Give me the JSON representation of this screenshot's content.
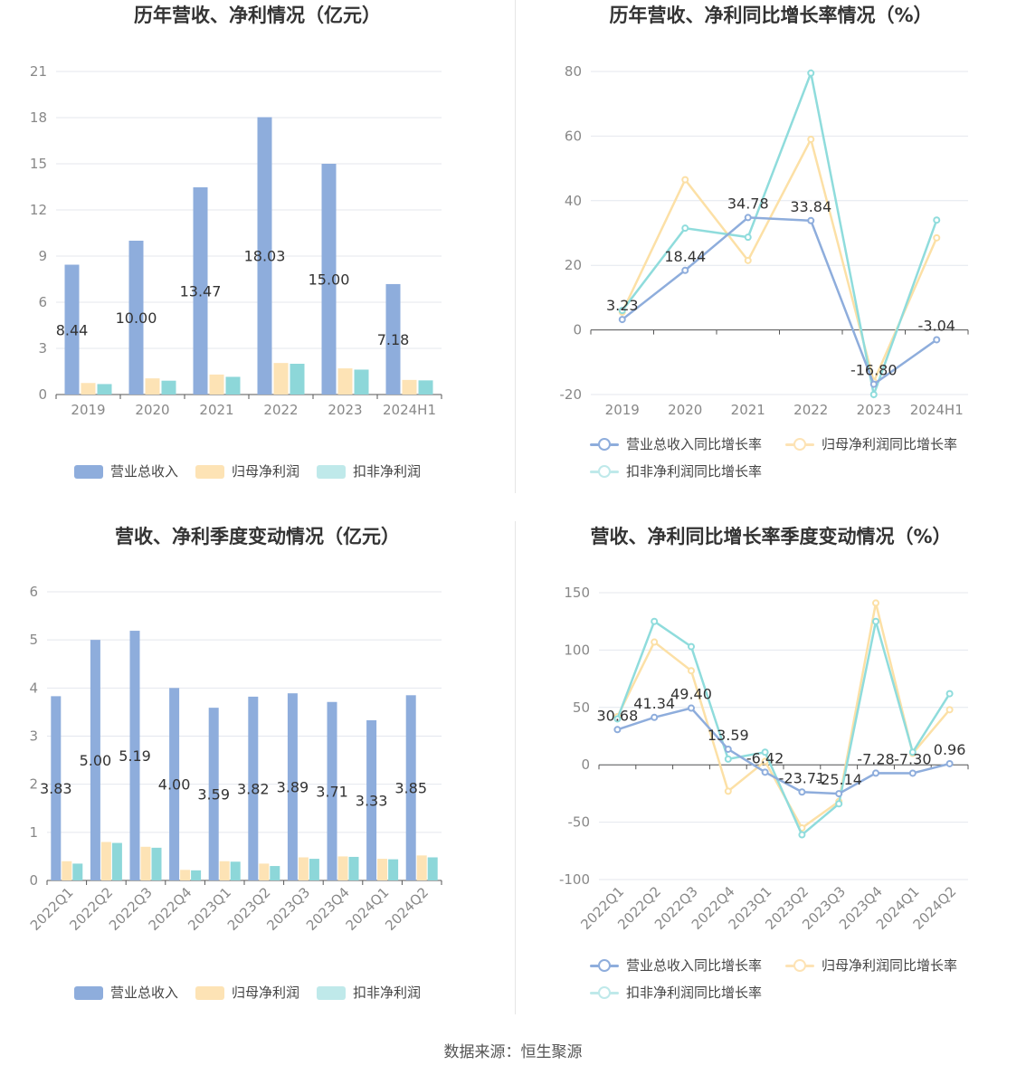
{
  "source_text": "数据来源：恒生聚源",
  "panels": {
    "annual_bar": {
      "title": "历年营收、净利情况（亿元）"
    },
    "annual_line": {
      "title": "历年营收、净利同比增长率情况（%）"
    },
    "quarter_bar": {
      "title": "营收、净利季度变动情况（亿元）"
    },
    "quarter_line": {
      "title": "营收、净利同比增长率季度变动情况（%）"
    }
  },
  "legends": {
    "bar": [
      "营业总收入",
      "归母净利润",
      "扣非净利润"
    ],
    "line": [
      "营业总收入同比增长率",
      "归母净利润同比增长率",
      "扣非净利润同比增长率"
    ]
  },
  "colors": {
    "revenue": "#8eaddc",
    "net_profit": "#fde3b5",
    "deducted_profit": "#8dd7d9",
    "line_revenue": "#8eaddc",
    "line_net_profit": "#fce0a6",
    "line_deducted": "#8fdcdc"
  },
  "chart_data": [
    {
      "id": "annual_bar",
      "type": "bar",
      "title": "历年营收、净利情况（亿元）",
      "categories": [
        "2019",
        "2020",
        "2021",
        "2022",
        "2023",
        "2024H1"
      ],
      "ylim": [
        0,
        21
      ],
      "yticks": [
        0,
        3,
        6,
        9,
        12,
        15,
        18,
        21
      ],
      "grid": true,
      "legend_position": "bottom",
      "series": [
        {
          "name": "营业总收入",
          "values": [
            8.44,
            10.0,
            13.47,
            18.03,
            15.0,
            7.18
          ],
          "labels": [
            "8.44",
            "10.00",
            "13.47",
            "18.03",
            "15.00",
            "7.18"
          ]
        },
        {
          "name": "归母净利润",
          "values": [
            0.75,
            1.05,
            1.3,
            2.05,
            1.7,
            0.95
          ]
        },
        {
          "name": "扣非净利润",
          "values": [
            0.68,
            0.9,
            1.15,
            2.0,
            1.62,
            0.92
          ]
        }
      ]
    },
    {
      "id": "annual_line",
      "type": "line",
      "title": "历年营收、净利同比增长率情况（%）",
      "categories": [
        "2019",
        "2020",
        "2021",
        "2022",
        "2023",
        "2024H1"
      ],
      "ylim": [
        -20,
        80
      ],
      "yticks": [
        -20,
        0,
        20,
        40,
        60,
        80
      ],
      "grid": true,
      "legend_position": "bottom",
      "series": [
        {
          "name": "营业总收入同比增长率",
          "values": [
            3.23,
            18.44,
            34.78,
            33.84,
            -16.8,
            -3.04
          ],
          "labels": [
            "3.23",
            "18.44",
            "34.78",
            "33.84",
            "-16.80",
            "-3.04"
          ]
        },
        {
          "name": "归母净利润同比增长率",
          "values": [
            5.5,
            46.5,
            21.5,
            59.0,
            -16.0,
            28.5
          ]
        },
        {
          "name": "扣非净利润同比增长率",
          "values": [
            6.0,
            31.5,
            28.7,
            79.5,
            -20.0,
            34.0
          ]
        }
      ]
    },
    {
      "id": "quarter_bar",
      "type": "bar",
      "title": "营收、净利季度变动情况（亿元）",
      "categories": [
        "2022Q1",
        "2022Q2",
        "2022Q3",
        "2022Q4",
        "2023Q1",
        "2023Q2",
        "2023Q3",
        "2023Q4",
        "2024Q1",
        "2024Q2"
      ],
      "ylim": [
        0,
        6
      ],
      "yticks": [
        0,
        1,
        2,
        3,
        4,
        5,
        6
      ],
      "grid": true,
      "legend_position": "bottom",
      "series": [
        {
          "name": "营业总收入",
          "values": [
            3.83,
            5.0,
            5.19,
            4.0,
            3.59,
            3.82,
            3.89,
            3.71,
            3.33,
            3.85
          ],
          "labels": [
            "3.83",
            "5.00",
            "5.19",
            "4.00",
            "3.59",
            "3.82",
            "3.89",
            "3.71",
            "3.33",
            "3.85"
          ]
        },
        {
          "name": "归母净利润",
          "values": [
            0.4,
            0.8,
            0.7,
            0.22,
            0.4,
            0.35,
            0.48,
            0.5,
            0.45,
            0.52
          ]
        },
        {
          "name": "扣非净利润",
          "values": [
            0.35,
            0.78,
            0.68,
            0.21,
            0.39,
            0.3,
            0.45,
            0.49,
            0.44,
            0.48
          ]
        }
      ]
    },
    {
      "id": "quarter_line",
      "type": "line",
      "title": "营收、净利同比增长率季度变动情况（%）",
      "categories": [
        "2022Q1",
        "2022Q2",
        "2022Q3",
        "2022Q4",
        "2023Q1",
        "2023Q2",
        "2023Q3",
        "2023Q4",
        "2024Q1",
        "2024Q2"
      ],
      "ylim": [
        -100,
        150
      ],
      "yticks": [
        -100,
        -50,
        0,
        50,
        100,
        150
      ],
      "grid": true,
      "legend_position": "bottom",
      "series": [
        {
          "name": "营业总收入同比增长率",
          "values": [
            30.68,
            41.34,
            49.4,
            13.59,
            -6.42,
            -23.71,
            -25.14,
            -7.28,
            -7.3,
            0.96
          ],
          "labels": [
            "30.68",
            "41.34",
            "49.40",
            "13.59",
            "-6.42",
            "-23.71",
            "-25.14",
            "-7.28",
            "-7.30",
            "0.96"
          ]
        },
        {
          "name": "归母净利润同比增长率",
          "values": [
            42,
            107,
            82,
            -23,
            3,
            -55,
            -32,
            141,
            10,
            48
          ]
        },
        {
          "name": "扣非净利润同比增长率",
          "values": [
            40,
            125,
            103,
            5,
            11,
            -61,
            -34,
            125,
            11,
            62
          ]
        }
      ]
    }
  ]
}
